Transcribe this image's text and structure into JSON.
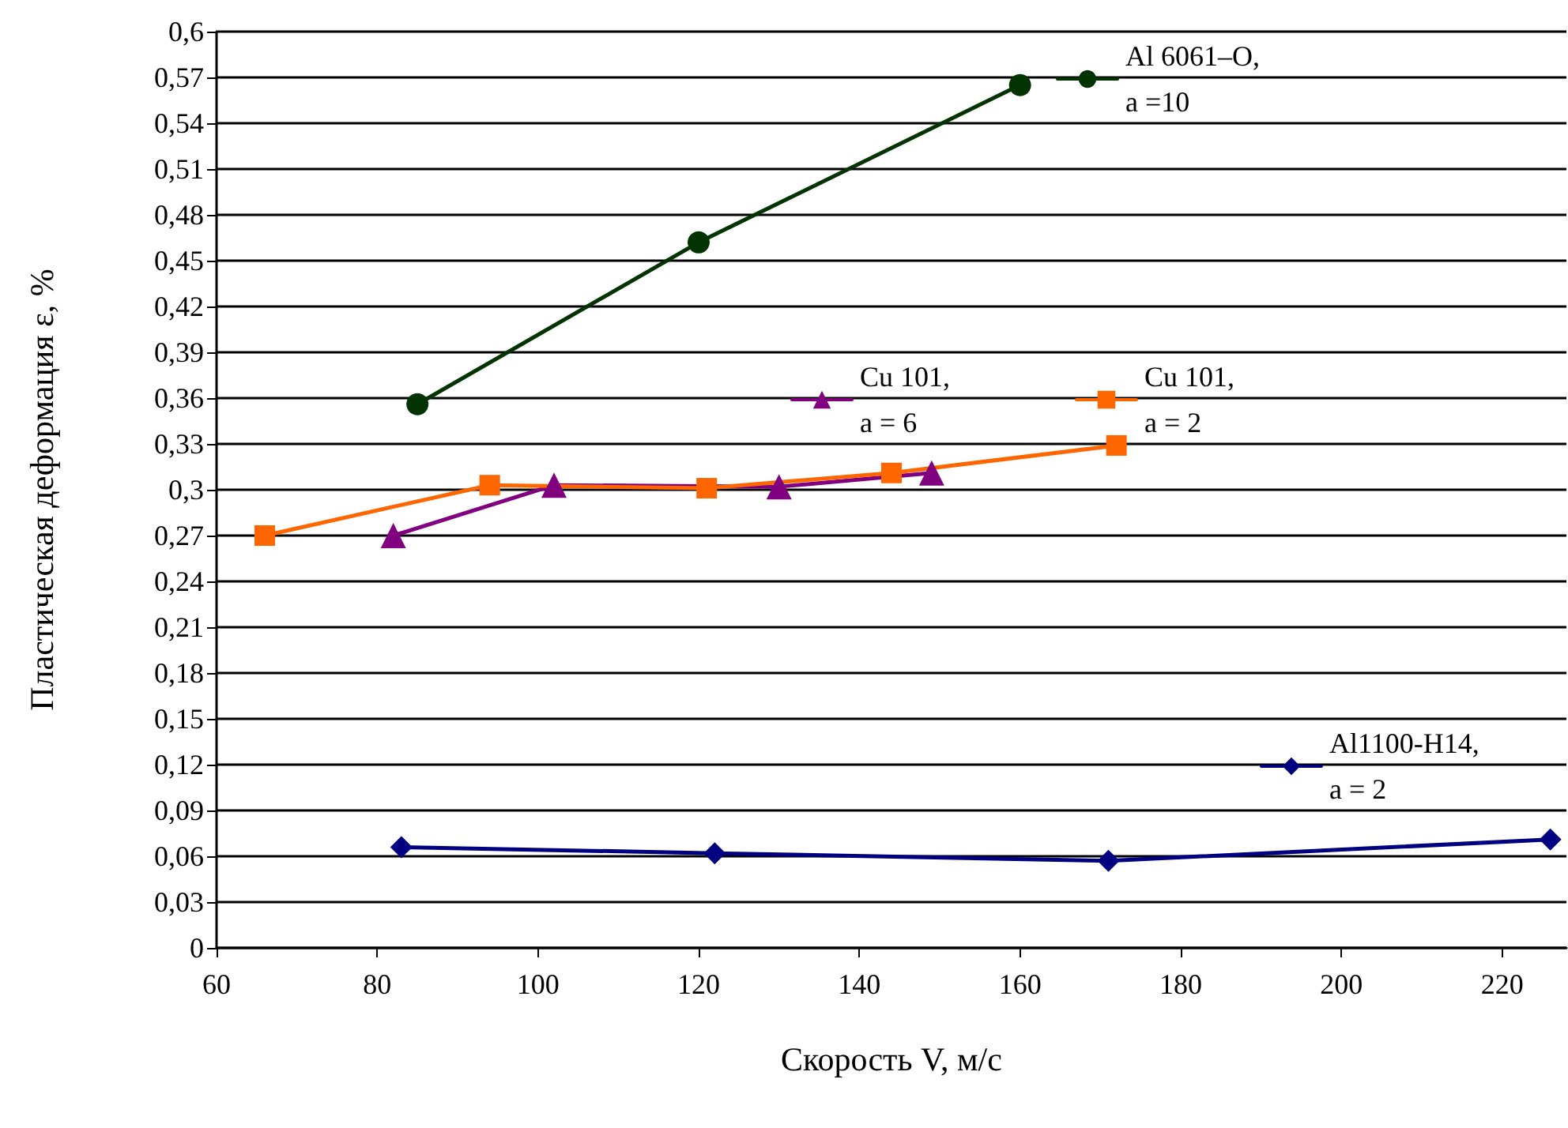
{
  "chart_data": {
    "type": "line",
    "xlabel": "Скорость V, м/с",
    "ylabel": "Пластическая деформация ε, %",
    "xlim": [
      60,
      228
    ],
    "xticks": [
      60,
      80,
      100,
      120,
      140,
      160,
      180,
      200,
      220
    ],
    "ylim": [
      0,
      0.6
    ],
    "yticks": [
      0,
      {
        "value": 0.03,
        "label": "0,03"
      },
      {
        "value": 0.06,
        "label": "0,06"
      },
      {
        "value": 0.09,
        "label": "0,09"
      },
      {
        "value": 0.12,
        "label": "0,12"
      },
      {
        "value": 0.15,
        "label": "0,15"
      },
      {
        "value": 0.18,
        "label": "0,18"
      },
      {
        "value": 0.21,
        "label": "0,21"
      },
      {
        "value": 0.24,
        "label": "0,24"
      },
      {
        "value": 0.27,
        "label": "0,27"
      },
      {
        "value": 0.3,
        "label": "0,3"
      },
      {
        "value": 0.33,
        "label": "0,33"
      },
      {
        "value": 0.36,
        "label": "0,36"
      },
      {
        "value": 0.39,
        "label": "0,39"
      },
      {
        "value": 0.42,
        "label": "0,42"
      },
      {
        "value": 0.45,
        "label": "0,45"
      },
      {
        "value": 0.48,
        "label": "0,48"
      },
      {
        "value": 0.51,
        "label": "0,51"
      },
      {
        "value": 0.54,
        "label": "0,54"
      },
      {
        "value": 0.57,
        "label": "0,57"
      },
      {
        "value": 0.6,
        "label": "0,6"
      }
    ],
    "grid": "y",
    "legend": "top right",
    "line_style": "solid",
    "series": [
      {
        "name": "Al 6061–O,\na =10",
        "color": "#003300",
        "marker": "circle",
        "x": [
          85,
          120,
          160
        ],
        "values": [
          0.356,
          0.462,
          0.565
        ]
      },
      {
        "name": "Cu 101,\na = 6",
        "color": "#800080",
        "marker": "triangle",
        "x": [
          82,
          102,
          130,
          149
        ],
        "values": [
          0.27,
          0.303,
          0.302,
          0.311
        ]
      },
      {
        "name": "Cu 101,\na = 2",
        "color": "#ff6600",
        "marker": "square",
        "x": [
          66,
          94,
          121,
          144,
          172
        ],
        "values": [
          0.27,
          0.303,
          0.301,
          0.311,
          0.329
        ]
      },
      {
        "name": "Al1100-H14,\na = 2",
        "color": "#000080",
        "marker": "diamond",
        "x": [
          83,
          122,
          171,
          226
        ],
        "values": [
          0.066,
          0.062,
          0.057,
          0.071
        ]
      }
    ]
  }
}
